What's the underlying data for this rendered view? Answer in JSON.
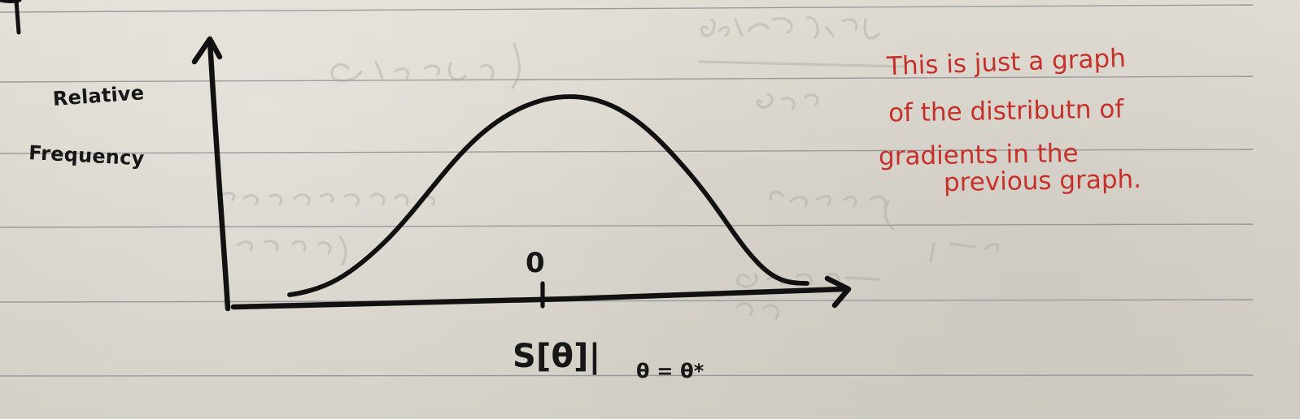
{
  "graph": {
    "ylabel_lines": [
      "Relative",
      "Frequency"
    ],
    "origin_label": "0",
    "xlabel_main": "S[θ]|",
    "xlabel_subscript": "θ = θ*"
  },
  "note": {
    "lines": [
      "This is just a graph",
      "of the distributn of",
      "gradients in the",
      "previous        graph."
    ]
  }
}
